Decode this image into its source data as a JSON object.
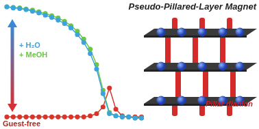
{
  "chart_data": {
    "type": "line",
    "title": "Pseudo-Pillared-Layer Magnet",
    "x": [
      1,
      2,
      3,
      4,
      5,
      6,
      7,
      8,
      9,
      10,
      11,
      12,
      13,
      14,
      15,
      16,
      17,
      18,
      19,
      20,
      21,
      22
    ],
    "xlim": [
      1,
      22
    ],
    "ylim": [
      0,
      1
    ],
    "tick_labels": false,
    "grid": false,
    "marker": "circle",
    "series": [
      {
        "name": "+ H₂O",
        "color": "#3ba3de",
        "values": [
          1.0,
          0.99,
          0.985,
          0.975,
          0.96,
          0.945,
          0.925,
          0.905,
          0.88,
          0.85,
          0.81,
          0.75,
          0.68,
          0.58,
          0.44,
          0.22,
          0.04,
          0.02,
          0.01,
          0.01,
          0.0,
          0.0
        ]
      },
      {
        "name": "+ MeOH",
        "color": "#6cc644",
        "values": [
          1.0,
          0.995,
          0.99,
          0.98,
          0.97,
          0.955,
          0.94,
          0.92,
          0.9,
          0.87,
          0.83,
          0.78,
          0.71,
          0.62,
          0.48,
          0.25,
          0.05,
          0.02,
          0.01,
          0.01,
          0.0,
          0.0
        ]
      },
      {
        "name": "Guest-free",
        "color": "#d9362b",
        "values": [
          0.01,
          0.01,
          0.01,
          0.01,
          0.01,
          0.01,
          0.01,
          0.01,
          0.01,
          0.01,
          0.01,
          0.01,
          0.01,
          0.02,
          0.04,
          0.1,
          0.27,
          0.08,
          0.02,
          0.01,
          0.01,
          0.01
        ]
      }
    ],
    "annotations": [
      "Pillar dianion"
    ]
  }
}
